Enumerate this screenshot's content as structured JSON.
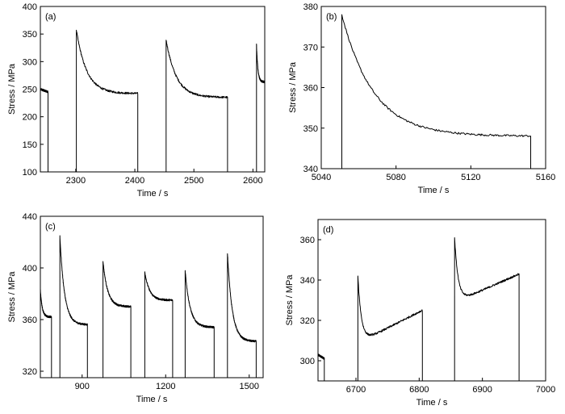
{
  "chart_data": [
    {
      "panel": "(a)",
      "type": "line",
      "xlabel": "Time / s",
      "ylabel": "Stress / MPa",
      "xlim": [
        2240,
        2620
      ],
      "ylim": [
        100,
        400
      ],
      "xticks": [
        2300,
        2400,
        2500,
        2600
      ],
      "yticks": [
        100,
        150,
        200,
        250,
        300,
        350,
        400
      ],
      "segments": [
        {
          "t_start": 2240,
          "t_end": 2253,
          "peak": 250,
          "end": 245,
          "kind": "flat"
        },
        {
          "t_start": 2301,
          "t_end": 2405,
          "peak": 357,
          "end": 242,
          "kind": "decay"
        },
        {
          "t_start": 2453,
          "t_end": 2557,
          "peak": 339,
          "end": 235,
          "kind": "decay"
        },
        {
          "t_start": 2606,
          "t_end": 2620,
          "peak": 332,
          "end": 263,
          "kind": "decay"
        }
      ]
    },
    {
      "panel": "(b)",
      "type": "line",
      "xlabel": "Time / s",
      "ylabel": "Stress / MPa",
      "xlim": [
        5040,
        5160
      ],
      "ylim": [
        340,
        380
      ],
      "xticks": [
        5040,
        5080,
        5120,
        5160
      ],
      "yticks": [
        340,
        350,
        360,
        370,
        380
      ],
      "segments": [
        {
          "t_start": 5051,
          "t_end": 5152,
          "peak": 378,
          "end": 348,
          "kind": "decay"
        }
      ]
    },
    {
      "panel": "(c)",
      "type": "line",
      "xlabel": "Time / s",
      "ylabel": "Stress / MPa",
      "xlim": [
        750,
        1550
      ],
      "ylim": [
        315,
        440
      ],
      "xticks": [
        900,
        1200,
        1500
      ],
      "yticks": [
        320,
        360,
        400,
        440
      ],
      "segments": [
        {
          "t_start": 750,
          "t_end": 790,
          "peak": 383,
          "end": 362,
          "kind": "decay"
        },
        {
          "t_start": 820,
          "t_end": 919,
          "peak": 425,
          "end": 356,
          "kind": "decay"
        },
        {
          "t_start": 975,
          "t_end": 1075,
          "peak": 405,
          "end": 370,
          "kind": "decay"
        },
        {
          "t_start": 1125,
          "t_end": 1225,
          "peak": 397,
          "end": 375,
          "kind": "decay"
        },
        {
          "t_start": 1270,
          "t_end": 1374,
          "peak": 398,
          "end": 354,
          "kind": "decay"
        },
        {
          "t_start": 1422,
          "t_end": 1525,
          "peak": 411,
          "end": 343,
          "kind": "decay"
        }
      ]
    },
    {
      "panel": "(d)",
      "type": "line",
      "xlabel": "Time / s",
      "ylabel": "Stress / MPa",
      "xlim": [
        6640,
        7000
      ],
      "ylim": [
        290,
        370
      ],
      "xticks": [
        6700,
        6800,
        6900,
        7000
      ],
      "yticks": [
        300,
        320,
        340,
        360
      ],
      "segments": [
        {
          "t_start": 6640,
          "t_end": 6650,
          "peak": 303,
          "end": 301,
          "kind": "flat"
        },
        {
          "t_start": 6703,
          "t_end": 6805,
          "peak": 342,
          "trough": 310,
          "end": 325,
          "kind": "dip-rise"
        },
        {
          "t_start": 6856,
          "t_end": 6958,
          "peak": 361,
          "trough": 330,
          "end": 343,
          "kind": "dip-rise"
        }
      ]
    }
  ]
}
